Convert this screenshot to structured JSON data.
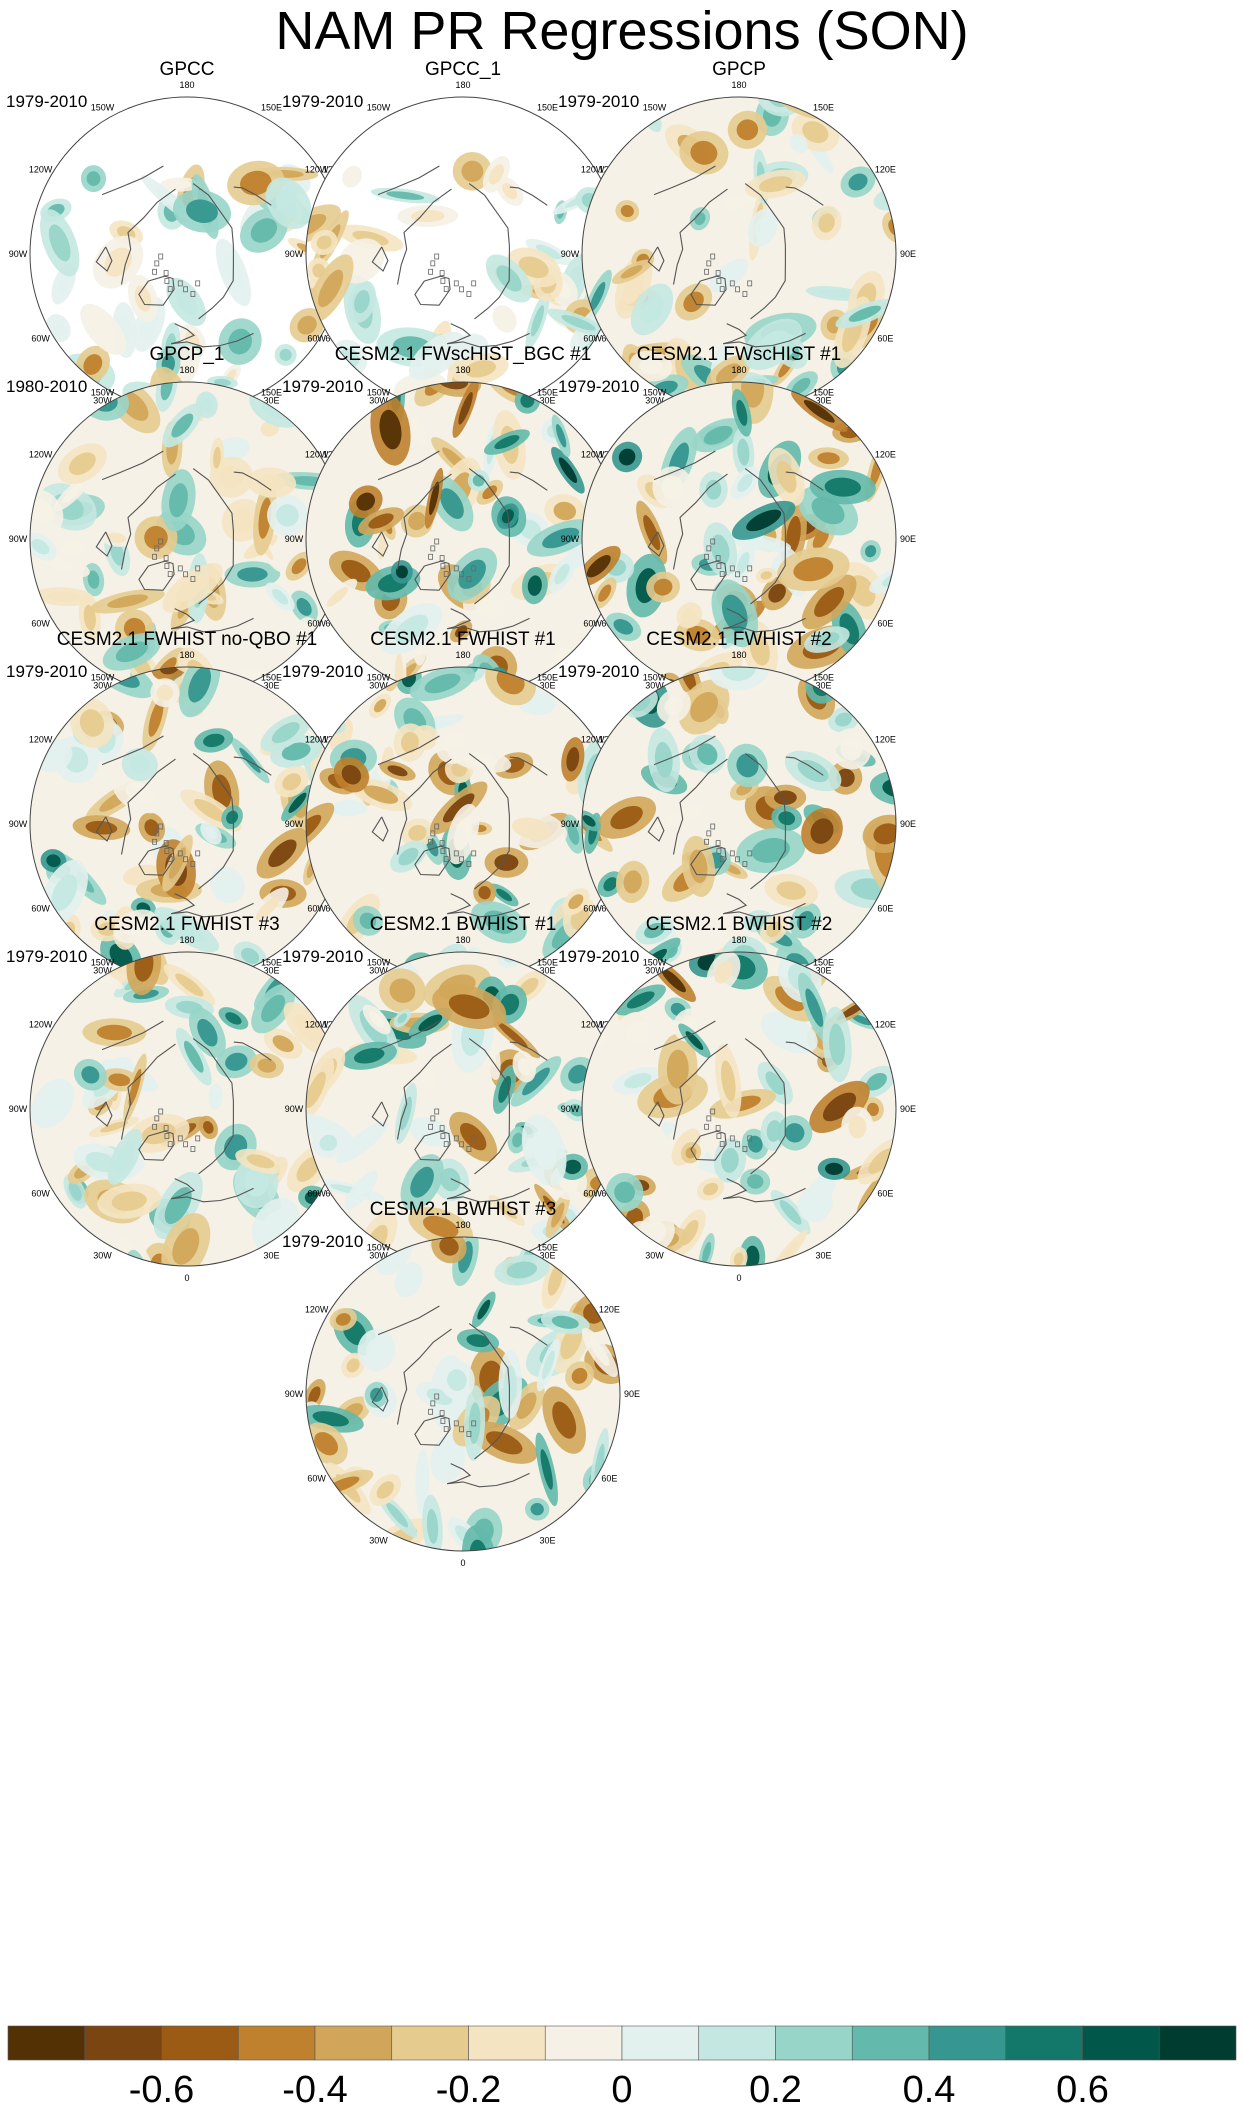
{
  "title": "NAM PR Regressions (SON)",
  "panels": [
    {
      "name": "GPCC",
      "period": "1979-2010",
      "seed": 11,
      "mask": "land-only",
      "strength": 0.45
    },
    {
      "name": "GPCC_1",
      "period": "1979-2010",
      "seed": 23,
      "mask": "land-only",
      "strength": 0.4
    },
    {
      "name": "GPCP",
      "period": "1979-2010",
      "seed": 37,
      "mask": "none",
      "strength": 0.5
    },
    {
      "name": "GPCP_1",
      "period": "1980-2010",
      "seed": 41,
      "mask": "none",
      "strength": 0.5
    },
    {
      "name": "CESM2.1 FWscHIST_BGC #1",
      "period": "1979-2010",
      "seed": 53,
      "mask": "none",
      "strength": 0.75
    },
    {
      "name": "CESM2.1 FWscHIST #1",
      "period": "1979-2010",
      "seed": 67,
      "mask": "none",
      "strength": 0.75
    },
    {
      "name": "CESM2.1 FWHIST no-QBO #1",
      "period": "1979-2010",
      "seed": 71,
      "mask": "none",
      "strength": 0.7
    },
    {
      "name": "CESM2.1 FWHIST #1",
      "period": "1979-2010",
      "seed": 83,
      "mask": "none",
      "strength": 0.72
    },
    {
      "name": "CESM2.1 FWHIST #2",
      "period": "1979-2010",
      "seed": 97,
      "mask": "none",
      "strength": 0.7
    },
    {
      "name": "CESM2.1 FWHIST #3",
      "period": "1979-2010",
      "seed": 101,
      "mask": "none",
      "strength": 0.62
    },
    {
      "name": "CESM2.1 BWHIST #1",
      "period": "1979-2010",
      "seed": 113,
      "mask": "none",
      "strength": 0.65
    },
    {
      "name": "CESM2.1 BWHIST #2",
      "period": "1979-2010",
      "seed": 127,
      "mask": "none",
      "strength": 0.72
    },
    {
      "name": "CESM2.1 BWHIST #3",
      "period": "1979-2010",
      "seed": 131,
      "mask": "none",
      "strength": 0.62
    }
  ],
  "longitude_labels": [
    "180",
    "150E",
    "120E",
    "90E",
    "60E",
    "30E",
    "0",
    "30W",
    "60W",
    "90W",
    "120W",
    "150W"
  ],
  "colorbar": {
    "levels": [
      -0.7,
      -0.6,
      -0.5,
      -0.4,
      -0.3,
      -0.2,
      -0.1,
      0,
      0.1,
      0.2,
      0.3,
      0.4,
      0.5,
      0.6,
      0.7
    ],
    "colors": [
      "#543005",
      "#7a4510",
      "#9b5b15",
      "#bf812d",
      "#d2a65a",
      "#e6cb8f",
      "#f4e4c2",
      "#f5f1e6",
      "#e3f1ee",
      "#c4e8e1",
      "#98d5c9",
      "#63b9ab",
      "#35978f",
      "#137869",
      "#01584a",
      "#003c30"
    ],
    "tick_labels": [
      "-0.6",
      "-0.4",
      "-0.2",
      "0",
      "0.2",
      "0.4",
      "0.6"
    ],
    "tick_values": [
      -0.6,
      -0.4,
      -0.2,
      0,
      0.2,
      0.4,
      0.6
    ]
  }
}
